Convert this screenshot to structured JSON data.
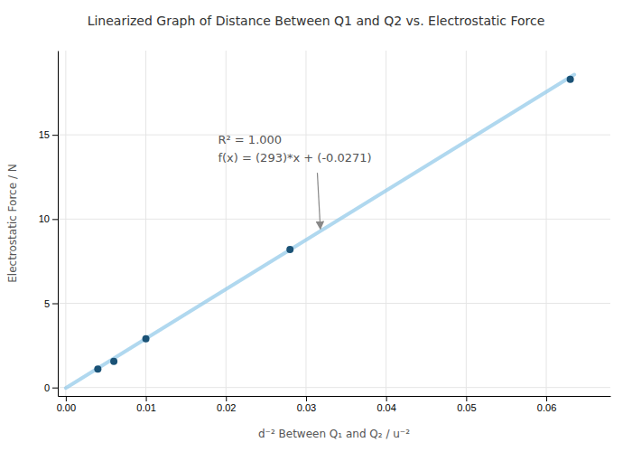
{
  "chart_data": {
    "type": "scatter",
    "title": "Linearized Graph of Distance Between Q1 and Q2 vs. Electrostatic Force",
    "xlabel": "d⁻² Between Q₁ and Q₂ / u⁻²",
    "ylabel": "Electrostatic Force / N",
    "series": [
      {
        "type": "line",
        "color": "#8ec8e8",
        "x": [
          0.0,
          0.0635
        ],
        "values": [
          -0.0271,
          18.5784
        ]
      },
      {
        "type": "scatter",
        "color": "#1a5276",
        "x": [
          0.004,
          0.006,
          0.01,
          0.028,
          0.063
        ],
        "values": [
          1.1,
          1.55,
          2.9,
          8.2,
          18.3
        ]
      }
    ],
    "annotations": [
      "R² = 1.000",
      "f(x) = (293)*x + (-0.0271)"
    ],
    "xlim": [
      -0.001,
      0.068
    ],
    "ylim": [
      -0.5,
      20.0
    ],
    "xticks": [
      {
        "value": 0,
        "label": "0.00"
      },
      {
        "value": 0.01,
        "label": "0.01"
      },
      {
        "value": 0.02,
        "label": "0.02"
      },
      {
        "value": 0.03,
        "label": "0.03"
      },
      {
        "value": 0.04,
        "label": "0.04"
      },
      {
        "value": 0.05,
        "label": "0.05"
      },
      {
        "value": 0.06,
        "label": "0.06"
      }
    ],
    "yticks": [
      0,
      5,
      10,
      15
    ],
    "grid": true
  }
}
